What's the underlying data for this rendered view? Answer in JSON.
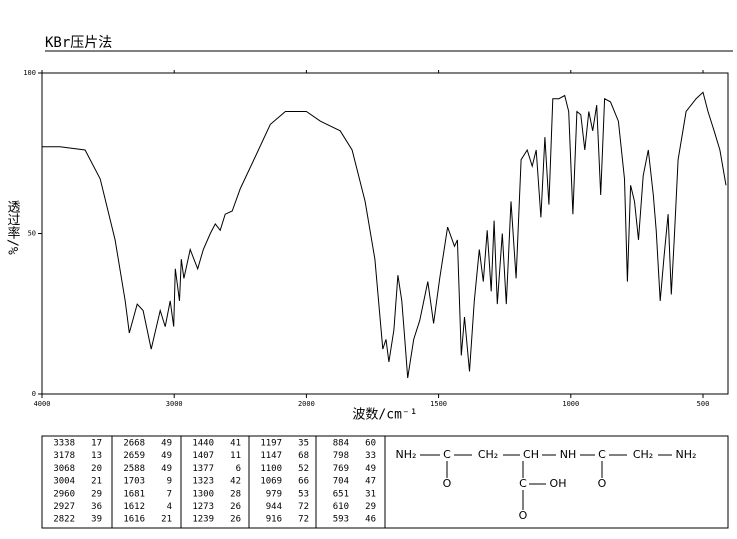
{
  "chart_data": {
    "type": "line",
    "title": "KBr压片法",
    "x_label": "波数/cm⁻¹",
    "y_label": "透过率/%",
    "xlim": [
      4000,
      400
    ],
    "ylim": [
      0,
      100
    ],
    "xticks": [
      4000,
      3000,
      2000,
      1500,
      1000,
      500
    ],
    "yticks": [
      0,
      50,
      100
    ],
    "series": [
      {
        "color": "#000000",
        "x": [
          4000,
          3864,
          3674,
          3560,
          3447,
          3371,
          3340,
          3280,
          3235,
          3174,
          3106,
          3068,
          3030,
          3004,
          2992,
          2960,
          2946,
          2927,
          2879,
          2841,
          2822,
          2780,
          2727,
          2689,
          2652,
          2614,
          2561,
          2500,
          2386,
          2273,
          2159,
          2083,
          2000,
          1947,
          1872,
          1827,
          1778,
          1741,
          1711,
          1699,
          1688,
          1669,
          1654,
          1639,
          1628,
          1617,
          1594,
          1571,
          1541,
          1519,
          1496,
          1466,
          1440,
          1429,
          1414,
          1402,
          1383,
          1365,
          1346,
          1331,
          1316,
          1301,
          1290,
          1278,
          1259,
          1244,
          1226,
          1207,
          1188,
          1165,
          1146,
          1131,
          1113,
          1098,
          1083,
          1068,
          1045,
          1023,
          1008,
          992,
          977,
          962,
          947,
          932,
          917,
          902,
          887,
          872,
          850,
          820,
          797,
          786,
          774,
          759,
          744,
          726,
          707,
          688,
          677,
          662,
          647,
          632,
          620,
          609,
          594,
          564,
          526,
          500,
          481,
          458,
          436,
          413
        ],
        "values": [
          77,
          77,
          76,
          67,
          48,
          29,
          19,
          28,
          26,
          14,
          26,
          21,
          29,
          21,
          39,
          29,
          42,
          36,
          45,
          41,
          39,
          45,
          50,
          53,
          51,
          56,
          57,
          64,
          74,
          84,
          88,
          88,
          88,
          85,
          82,
          76,
          60,
          42,
          14,
          17,
          10,
          20,
          37,
          29,
          17,
          5,
          17,
          23,
          35,
          22,
          36,
          52,
          46,
          48,
          12,
          24,
          7,
          29,
          45,
          35,
          51,
          32,
          54,
          28,
          50,
          28,
          60,
          36,
          73,
          76,
          71,
          76,
          55,
          80,
          59,
          92,
          92,
          93,
          88,
          56,
          88,
          87,
          76,
          88,
          82,
          90,
          62,
          92,
          91,
          85,
          67,
          35,
          65,
          60,
          48,
          68,
          76,
          62,
          51,
          29,
          43,
          56,
          31,
          48,
          73,
          88,
          92,
          94,
          88,
          82,
          76,
          65
        ]
      }
    ]
  },
  "peak_table": [
    [
      [
        3338,
        17
      ],
      [
        3178,
        13
      ],
      [
        3068,
        20
      ],
      [
        3004,
        21
      ],
      [
        2960,
        29
      ],
      [
        2927,
        36
      ],
      [
        2822,
        39
      ]
    ],
    [
      [
        2668,
        49
      ],
      [
        2659,
        49
      ],
      [
        2588,
        49
      ],
      [
        1703,
        9
      ],
      [
        1681,
        7
      ],
      [
        1612,
        4
      ],
      [
        1616,
        21
      ]
    ],
    [
      [
        1440,
        41
      ],
      [
        1407,
        11
      ],
      [
        1377,
        6
      ],
      [
        1323,
        42
      ],
      [
        1300,
        28
      ],
      [
        1273,
        26
      ],
      [
        1239,
        26
      ]
    ],
    [
      [
        1197,
        35
      ],
      [
        1147,
        68
      ],
      [
        1100,
        52
      ],
      [
        1069,
        66
      ],
      [
        979,
        53
      ],
      [
        944,
        72
      ],
      [
        916,
        72
      ]
    ],
    [
      [
        884,
        60
      ],
      [
        798,
        33
      ],
      [
        769,
        49
      ],
      [
        704,
        47
      ],
      [
        651,
        31
      ],
      [
        610,
        29
      ],
      [
        593,
        46
      ]
    ]
  ],
  "structure": {
    "atoms": [
      "NH₂",
      "C",
      "CH₂",
      "CH",
      "NH",
      "C",
      "CH₂",
      "NH₂",
      "O",
      "C",
      "OH",
      "O",
      "O"
    ]
  }
}
